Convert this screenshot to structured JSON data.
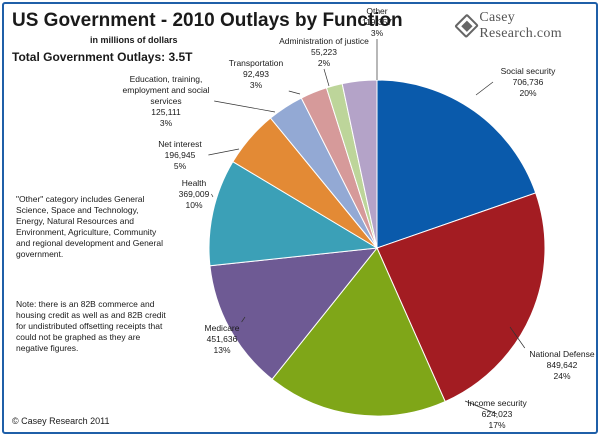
{
  "header": {
    "title": "US Government - 2010 Outlays by Function",
    "subtitle": "in millions of dollars",
    "total": "Total Government Outlays: 3.5T",
    "logo_text": "Casey Research.com",
    "logo_icon": "diamond-logo-icon"
  },
  "notes": {
    "other": "\"Other\" category includes General Science, Space and Technology, Energy, Natural Resources and Environment, Agriculture, Community and regional development and General government.",
    "note": "Note: there is an 82B commerce and housing credit as well as and 82B credit for undistributed offsetting receipts that could not be graphed as they are negative figures."
  },
  "footer": {
    "copyright": "© Casey Research 2011"
  },
  "colors": {
    "frame": "#1f5fa8"
  },
  "chart_data": {
    "type": "pie",
    "title": "US Government - 2010 Outlays by Function",
    "subtitle": "in millions of dollars",
    "slices": [
      {
        "name": "Social security",
        "value": 706736,
        "value_label": "706,736",
        "percent": "20%",
        "color": "#0a5aab"
      },
      {
        "name": "National Defense",
        "value": 849642,
        "value_label": "849,642",
        "percent": "24%",
        "color": "#a31c22"
      },
      {
        "name": "Income security",
        "value": 624023,
        "value_label": "624,023",
        "percent": "17%",
        "color": "#7fa618"
      },
      {
        "name": "Medicare",
        "value": 451636,
        "value_label": "451,636",
        "percent": "13%",
        "color": "#6e5a94"
      },
      {
        "name": "Health",
        "value": 369009,
        "value_label": "369,009",
        "percent": "10%",
        "color": "#3ba0b7"
      },
      {
        "name": "Net interest",
        "value": 196945,
        "value_label": "196,945",
        "percent": "5%",
        "color": "#e38a35"
      },
      {
        "name": "Education, training, employment and social services",
        "value": 125111,
        "value_label": "125,111",
        "percent": "3%",
        "color": "#93a9d4"
      },
      {
        "name": "Transportation",
        "value": 92493,
        "value_label": "92,493",
        "percent": "3%",
        "color": "#d69a9a"
      },
      {
        "name": "Administration of justice",
        "value": 55223,
        "value_label": "55,223",
        "percent": "2%",
        "color": "#bdd59a"
      },
      {
        "name": "Other",
        "value": 119357,
        "value_label": "119,357",
        "percent": "3%",
        "color": "#b4a3c8"
      }
    ]
  }
}
